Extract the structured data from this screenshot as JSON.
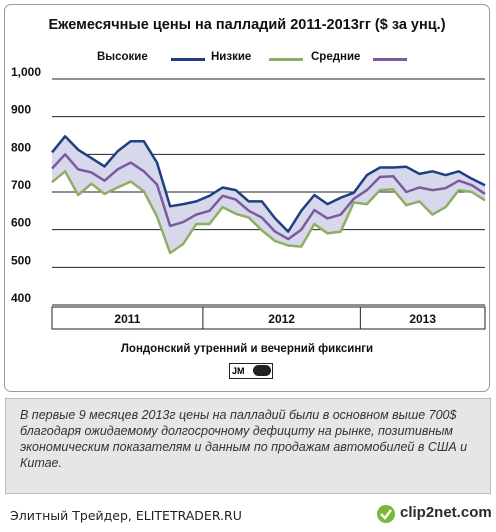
{
  "chart_data": {
    "type": "area",
    "title": "Ежемесячные цены на палладий 2011-2013гг ($ за унц.)",
    "xlabel": "Лондонский утренний и вечерний фиксинги",
    "ylim": [
      400,
      1000
    ],
    "yticks": [
      "400",
      "500",
      "600",
      "700",
      "800",
      "900",
      "1,000"
    ],
    "year_labels": [
      "2011",
      "2012",
      "2013"
    ],
    "year_month_counts": [
      12,
      12,
      10
    ],
    "grid": true,
    "legend_position": "top",
    "series": [
      {
        "name": "Высокие",
        "color": "#1f3f82",
        "values": [
          805,
          848,
          812,
          790,
          768,
          808,
          835,
          835,
          778,
          662,
          668,
          675,
          690,
          712,
          705,
          675,
          675,
          630,
          595,
          650,
          692,
          668,
          685,
          698,
          745,
          765,
          765,
          767,
          748,
          755,
          745,
          755,
          735,
          718
        ]
      },
      {
        "name": "Низкие",
        "color": "#8fae62",
        "values": [
          726,
          755,
          692,
          722,
          695,
          712,
          728,
          702,
          635,
          538,
          562,
          615,
          615,
          660,
          642,
          632,
          598,
          570,
          558,
          555,
          615,
          590,
          595,
          672,
          668,
          705,
          707,
          665,
          675,
          640,
          660,
          705,
          700,
          678
        ]
      },
      {
        "name": "Средние",
        "color": "#7b5b9e",
        "values": [
          762,
          800,
          760,
          752,
          730,
          760,
          778,
          755,
          720,
          610,
          620,
          640,
          650,
          690,
          680,
          650,
          632,
          595,
          575,
          600,
          652,
          630,
          640,
          682,
          705,
          740,
          742,
          700,
          712,
          705,
          710,
          730,
          718,
          695
        ]
      }
    ],
    "band_fill": "#d8d8ec"
  },
  "note": "В первые 9 месяцев 2013г цены на палладий были в основном выше 700$ благодаря ожидаемому долгосрочному дефициту на рынке, позитивным экономическим показателям и данным  по продажам автомобилей в США и Китае.",
  "footer": {
    "source": "Элитный Трейдер, ELITETRADER.RU",
    "logo_text": "JM",
    "watermark": "clip2net.com"
  }
}
